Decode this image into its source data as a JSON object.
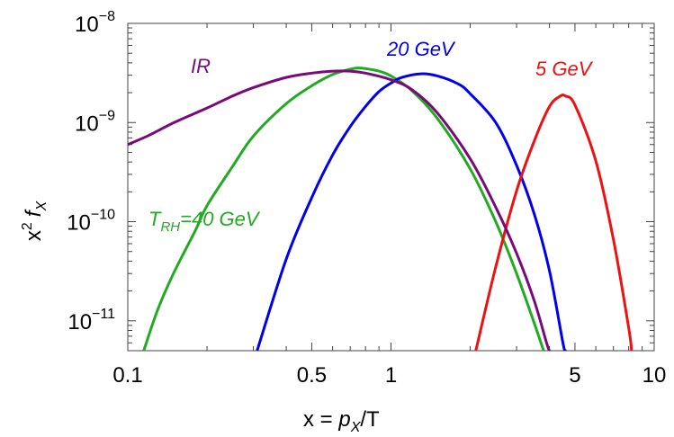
{
  "chart_data": {
    "type": "line",
    "x_scale": "log",
    "y_scale": "log",
    "xlim": [
      0.1,
      10
    ],
    "ylim": [
      5e-12,
      1e-08
    ],
    "xlabel": {
      "prefix": "x = ",
      "var": "p",
      "sub": "X",
      "suffix": "/T"
    },
    "ylabel": {
      "base": "x",
      "sup": "2",
      "var": "f",
      "sub": "X"
    },
    "x_ticks": [
      {
        "value": 0.1,
        "label": "0.1"
      },
      {
        "value": 0.5,
        "label": "0.5"
      },
      {
        "value": 1,
        "label": "1"
      },
      {
        "value": 5,
        "label": "5"
      },
      {
        "value": 10,
        "label": "10"
      }
    ],
    "y_ticks": [
      {
        "value": 1e-08,
        "mant": "10",
        "exp": "−8"
      },
      {
        "value": 1e-09,
        "mant": "10",
        "exp": "−9"
      },
      {
        "value": 1e-10,
        "mant": "10",
        "exp": "−10"
      },
      {
        "value": 1e-11,
        "mant": "10",
        "exp": "−11"
      }
    ],
    "series": [
      {
        "name": "T_RH=40 GeV",
        "label_parts": {
          "T": "T",
          "sub": "RH",
          "rest": "=40 GeV"
        },
        "color": "#22aa22",
        "points": [
          [
            0.115,
            5e-12
          ],
          [
            0.13,
            1.3e-11
          ],
          [
            0.15,
            3.1e-11
          ],
          [
            0.18,
            8e-11
          ],
          [
            0.2,
            1.45e-10
          ],
          [
            0.25,
            3.6e-10
          ],
          [
            0.3,
            7.3e-10
          ],
          [
            0.4,
            1.55e-09
          ],
          [
            0.5,
            2.35e-09
          ],
          [
            0.6,
            3.05e-09
          ],
          [
            0.7,
            3.45e-09
          ],
          [
            0.75,
            3.55e-09
          ],
          [
            0.8,
            3.5e-09
          ],
          [
            0.9,
            3.3e-09
          ],
          [
            1.0,
            2.95e-09
          ],
          [
            1.2,
            2.1e-09
          ],
          [
            1.5,
            1.1e-09
          ],
          [
            2.0,
            3.4e-10
          ],
          [
            2.5,
            1e-10
          ],
          [
            3.0,
            3e-11
          ],
          [
            3.5,
            9.5e-12
          ],
          [
            3.8,
            5e-12
          ]
        ]
      },
      {
        "name": "20 GeV",
        "color": "#0000ee",
        "points": [
          [
            0.31,
            5e-12
          ],
          [
            0.4,
            4.2e-11
          ],
          [
            0.5,
            1.75e-10
          ],
          [
            0.6,
            4.7e-10
          ],
          [
            0.7,
            9.1e-10
          ],
          [
            0.8,
            1.45e-09
          ],
          [
            0.9,
            2.05e-09
          ],
          [
            1.0,
            2.5e-09
          ],
          [
            1.1,
            2.85e-09
          ],
          [
            1.3,
            3.1e-09
          ],
          [
            1.5,
            2.95e-09
          ],
          [
            1.8,
            2.45e-09
          ],
          [
            2.0,
            1.95e-09
          ],
          [
            2.5,
            1e-09
          ],
          [
            3.0,
            3.7e-10
          ],
          [
            3.5,
            1.2e-10
          ],
          [
            4.0,
            3.2e-11
          ],
          [
            4.5,
            6e-12
          ],
          [
            4.6,
            5e-12
          ]
        ]
      },
      {
        "name": "5 GeV",
        "color": "#ee1111",
        "points": [
          [
            2.1,
            5e-12
          ],
          [
            2.5,
            3.5e-11
          ],
          [
            3.0,
            2.05e-10
          ],
          [
            3.5,
            6.5e-10
          ],
          [
            4.0,
            1.45e-09
          ],
          [
            4.4,
            1.85e-09
          ],
          [
            4.6,
            1.85e-09
          ],
          [
            5.0,
            1.5e-09
          ],
          [
            6.0,
            4.1e-10
          ],
          [
            7.0,
            6.6e-11
          ],
          [
            8.0,
            8.5e-12
          ],
          [
            8.2,
            5e-12
          ]
        ]
      },
      {
        "name": "IR",
        "color": "#7a0a7a",
        "points": [
          [
            0.1,
            6e-10
          ],
          [
            0.12,
            7.4e-10
          ],
          [
            0.15,
            1e-09
          ],
          [
            0.2,
            1.4e-09
          ],
          [
            0.25,
            1.85e-09
          ],
          [
            0.3,
            2.25e-09
          ],
          [
            0.4,
            2.85e-09
          ],
          [
            0.5,
            3.15e-09
          ],
          [
            0.6,
            3.3e-09
          ],
          [
            0.7,
            3.3e-09
          ],
          [
            0.8,
            3.15e-09
          ],
          [
            1.0,
            2.7e-09
          ],
          [
            1.2,
            2.15e-09
          ],
          [
            1.5,
            1.25e-09
          ],
          [
            2.0,
            4.3e-10
          ],
          [
            2.5,
            1.4e-10
          ],
          [
            3.0,
            4.8e-11
          ],
          [
            3.5,
            1.6e-11
          ],
          [
            3.9,
            6e-12
          ],
          [
            4.0,
            5e-12
          ]
        ]
      }
    ]
  }
}
